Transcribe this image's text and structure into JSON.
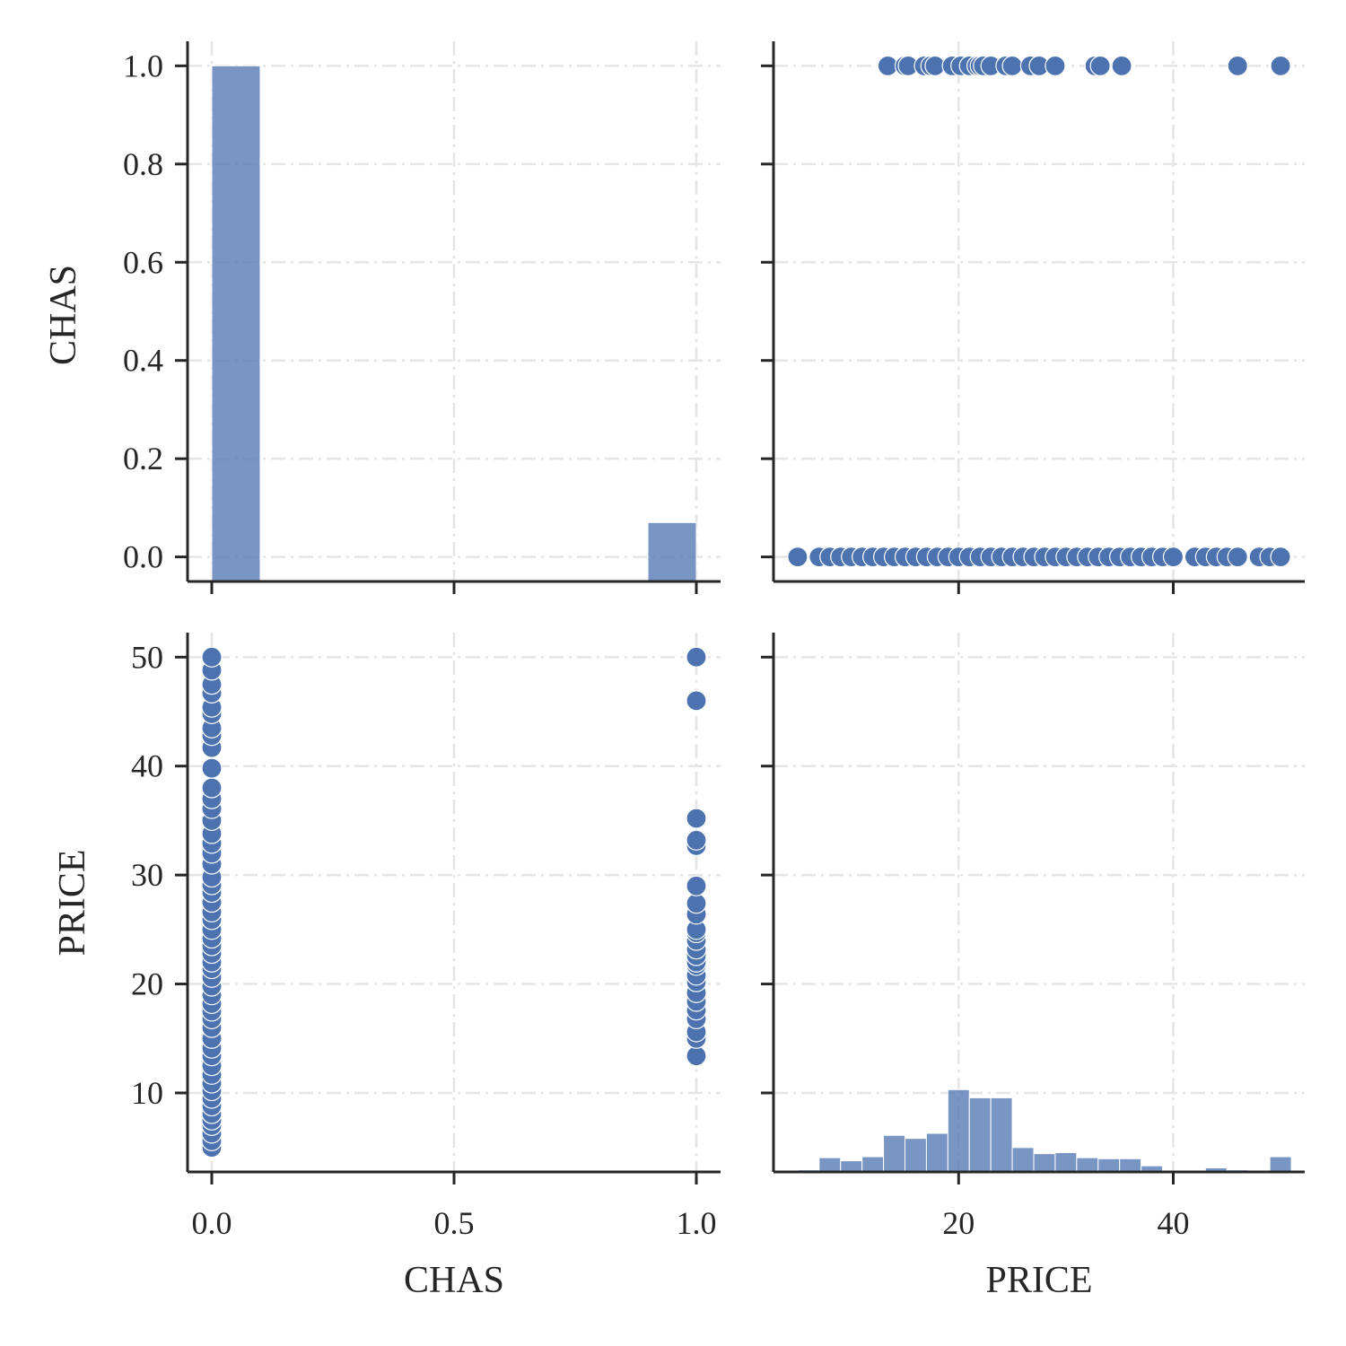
{
  "chart_data": {
    "type": "scatter",
    "kind": "pairplot",
    "variables": [
      "CHAS",
      "PRICE"
    ],
    "grid": true,
    "axes": {
      "CHAS": {
        "range": [
          -0.05,
          1.05
        ],
        "ticks": [
          0.0,
          0.5,
          1.0
        ],
        "tick_labels": [
          "0.0",
          "0.5",
          "1.0"
        ],
        "label": "CHAS"
      },
      "PRICE": {
        "range": [
          2.75,
          52.25
        ],
        "ticks": [
          20,
          40
        ],
        "tick_labels": [
          "20",
          "40"
        ],
        "label": "PRICE"
      },
      "CHAS_density": {
        "range": [
          -0.05,
          1.05
        ],
        "ticks": [
          0.0,
          0.2,
          0.4,
          0.6,
          0.8,
          1.0
        ],
        "tick_labels": [
          "0.0",
          "0.2",
          "0.4",
          "0.6",
          "0.8",
          "1.0"
        ]
      },
      "PRICE_row": {
        "range": [
          2.75,
          52.25
        ],
        "ticks": [
          10,
          20,
          30,
          40,
          50
        ],
        "tick_labels": [
          "10",
          "20",
          "30",
          "40",
          "50"
        ]
      }
    },
    "panels": [
      {
        "id": "chas-hist",
        "type": "bar",
        "x": "CHAS",
        "bins": [
          {
            "x0": 0.0,
            "x1": 0.1,
            "value": 1.0
          },
          {
            "x0": 0.9,
            "x1": 1.0,
            "value": 0.07
          }
        ]
      },
      {
        "id": "chas-vs-price",
        "type": "scatter",
        "x": "PRICE",
        "y": "CHAS",
        "groups": [
          {
            "y": 1,
            "x": [
              13.4,
              15.0,
              15.3,
              16.8,
              17.4,
              17.8,
              19.4,
              20.2,
              21.0,
              21.7,
              22.0,
              22.3,
              23.0,
              24.4,
              25.0,
              26.7,
              27.5,
              29.0,
              32.7,
              33.2,
              35.2,
              46.0,
              50.0
            ]
          },
          {
            "y": 0,
            "x": [
              5.0,
              7.0,
              8.0,
              9.0,
              10.0,
              11.0,
              12.0,
              13.0,
              14.0,
              15.0,
              16.0,
              17.0,
              18.0,
              19.0,
              20.0,
              21.0,
              22.0,
              23.0,
              24.0,
              25.0,
              26.0,
              27.0,
              28.0,
              29.0,
              30.0,
              31.0,
              32.0,
              33.0,
              34.0,
              35.0,
              36.0,
              37.0,
              38.0,
              39.0,
              40.0,
              42.0,
              43.0,
              44.0,
              45.0,
              46.0,
              48.0,
              49.0,
              50.0
            ]
          }
        ]
      },
      {
        "id": "price-vs-chas",
        "type": "scatter",
        "x": "CHAS",
        "y": "PRICE",
        "groups": [
          {
            "x": 0,
            "y": [
              5.0,
              5.6,
              6.3,
              7.0,
              7.5,
              8.1,
              8.8,
              9.5,
              10.2,
              10.9,
              11.7,
              12.5,
              13.4,
              14.1,
              15.0,
              16.0,
              16.8,
              17.5,
              18.2,
              19.0,
              19.8,
              20.6,
              21.4,
              22.0,
              22.8,
              23.5,
              24.2,
              25.0,
              25.9,
              26.6,
              27.5,
              28.4,
              29.1,
              29.8,
              31.0,
              32.0,
              32.9,
              33.8,
              35.0,
              36.1,
              37.0,
              38.0,
              39.8,
              41.7,
              42.8,
              43.5,
              44.8,
              45.4,
              46.7,
              47.5,
              48.8,
              50.0
            ]
          },
          {
            "x": 1,
            "y": [
              13.4,
              15.0,
              15.6,
              16.8,
              17.6,
              18.4,
              19.2,
              20.2,
              20.8,
              21.7,
              22.0,
              22.6,
              23.2,
              24.0,
              24.7,
              25.0,
              26.4,
              27.4,
              29.0,
              32.7,
              33.2,
              35.2,
              46.0,
              50.0
            ]
          }
        ]
      },
      {
        "id": "price-hist",
        "type": "bar",
        "x": "PRICE",
        "bin_width": 2.0,
        "bin_start": 5.0,
        "counts": [
          2,
          14,
          11,
          15,
          36,
          33,
          38,
          81,
          73,
          73,
          24,
          18,
          19,
          14,
          13,
          13,
          6,
          1,
          1,
          4,
          2,
          0,
          15
        ]
      }
    ]
  }
}
